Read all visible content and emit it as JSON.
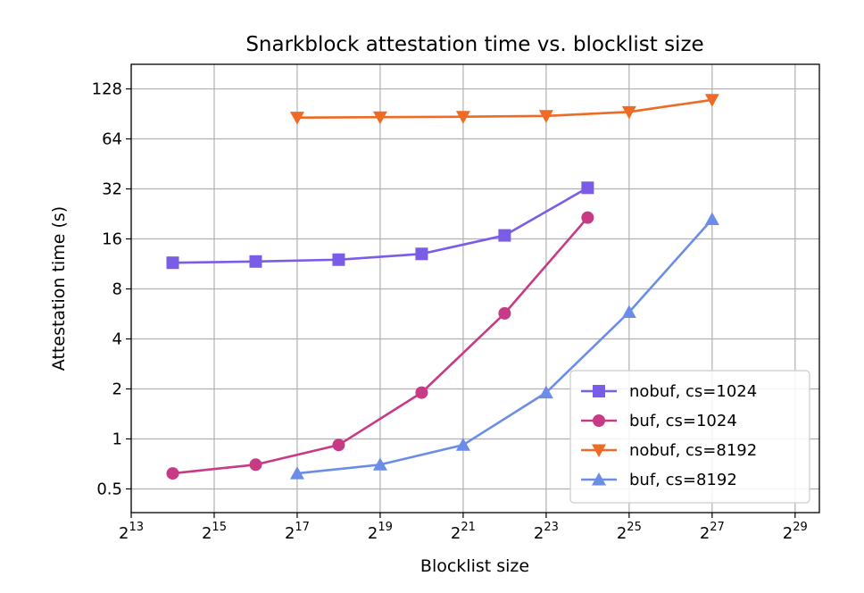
{
  "chart_data": {
    "type": "line",
    "title": "Snarkblock attestation time vs. blocklist size",
    "xlabel": "Blocklist size",
    "ylabel": "Attestation time (s)",
    "x_scale": "log2",
    "y_scale": "log2",
    "xlim": [
      8192,
      805306368
    ],
    "ylim": [
      0.36,
      180
    ],
    "x_ticks": [
      {
        "base": "2",
        "exp": "13",
        "value": 8192
      },
      {
        "base": "2",
        "exp": "15",
        "value": 32768
      },
      {
        "base": "2",
        "exp": "17",
        "value": 131072
      },
      {
        "base": "2",
        "exp": "19",
        "value": 524288
      },
      {
        "base": "2",
        "exp": "21",
        "value": 2097152
      },
      {
        "base": "2",
        "exp": "23",
        "value": 8388608
      },
      {
        "base": "2",
        "exp": "25",
        "value": 33554432
      },
      {
        "base": "2",
        "exp": "27",
        "value": 134217728
      },
      {
        "base": "2",
        "exp": "29",
        "value": 536870912
      }
    ],
    "y_ticks": [
      {
        "label": "0.5",
        "value": 0.5
      },
      {
        "label": "1",
        "value": 1
      },
      {
        "label": "2",
        "value": 2
      },
      {
        "label": "4",
        "value": 4
      },
      {
        "label": "8",
        "value": 8
      },
      {
        "label": "16",
        "value": 16
      },
      {
        "label": "32",
        "value": 32
      },
      {
        "label": "64",
        "value": 64
      },
      {
        "label": "128",
        "value": 128
      }
    ],
    "grid": true,
    "legend_position": "lower-right",
    "series": [
      {
        "name": "nobuf, cs=1024",
        "color": "#7b5ce6",
        "marker": "square",
        "x": [
          16384,
          65536,
          262144,
          1048576,
          4194304,
          16777216
        ],
        "y": [
          11.5,
          11.7,
          12.0,
          13.0,
          16.8,
          32.5
        ]
      },
      {
        "name": "buf, cs=1024",
        "color": "#c73a86",
        "marker": "circle",
        "x": [
          16384,
          65536,
          262144,
          1048576,
          4194304,
          16777216
        ],
        "y": [
          0.62,
          0.7,
          0.92,
          1.9,
          5.7,
          21.5
        ]
      },
      {
        "name": "nobuf, cs=8192",
        "color": "#ee6a25",
        "marker": "triangle-down",
        "x": [
          131072,
          524288,
          2097152,
          8388608,
          33554432,
          134217728
        ],
        "y": [
          86.0,
          86.5,
          87.0,
          88.0,
          93.0,
          110.0
        ]
      },
      {
        "name": "buf, cs=8192",
        "color": "#6b8de8",
        "marker": "triangle-up",
        "x": [
          131072,
          524288,
          2097152,
          8388608,
          33554432,
          134217728
        ],
        "y": [
          0.62,
          0.7,
          0.92,
          1.9,
          5.8,
          21.0
        ]
      }
    ]
  }
}
